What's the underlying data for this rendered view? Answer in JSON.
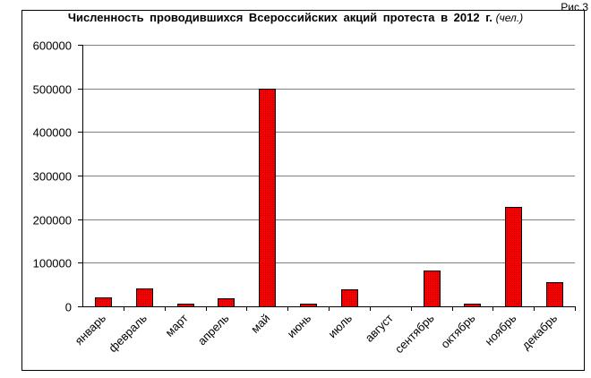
{
  "figure_label": "Рис.3",
  "chart_data": {
    "type": "bar",
    "title": "Численность  проводившихся  Всероссийских  акций протеста  в 2012 г.",
    "unit": "(чел.)",
    "categories": [
      "январь",
      "февраль",
      "март",
      "апрель",
      "май",
      "июнь",
      "июль",
      "август",
      "сентябрь",
      "октябрь",
      "ноябрь",
      "декабрь"
    ],
    "values": [
      20000,
      42000,
      7000,
      19000,
      499000,
      7000,
      40000,
      0,
      82000,
      7000,
      229000,
      55000
    ],
    "ylim": [
      0,
      600000
    ],
    "yticks": [
      "0",
      "100000",
      "200000",
      "300000",
      "400000",
      "500000",
      "600000"
    ],
    "xlabel": "",
    "ylabel": "",
    "grid": true,
    "legend": "none",
    "colors": {
      "bar_fill": "#ff0000",
      "bar_stroke": "#000000",
      "gridline": "#808080",
      "axis": "#000000"
    }
  }
}
